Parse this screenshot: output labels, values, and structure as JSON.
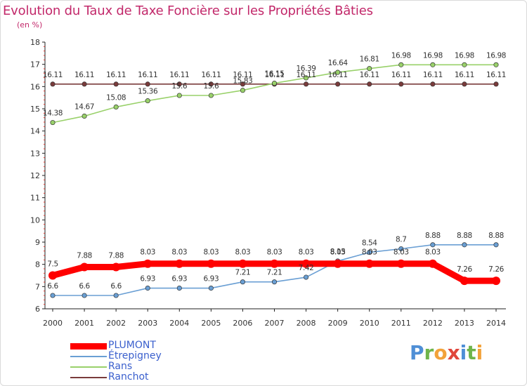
{
  "title": "Evolution du Taux de Taxe Foncière sur les Propriétés Bâties",
  "unit": "(en %)",
  "chart_data": {
    "type": "line",
    "title": "Evolution du Taux de Taxe Foncière sur les Propriétés Bâties",
    "ylabel": "(en %)",
    "xlabel": "",
    "ylim": [
      6,
      18
    ],
    "yticks": [
      6,
      7,
      8,
      9,
      10,
      11,
      12,
      13,
      14,
      15,
      16,
      17,
      18
    ],
    "categories": [
      "2000",
      "2001",
      "2002",
      "2003",
      "2004",
      "2005",
      "2006",
      "2007",
      "2008",
      "2009",
      "2010",
      "2011",
      "2012",
      "2013",
      "2014"
    ],
    "series": [
      {
        "name": "PLUMONT",
        "color": "#ff0000",
        "values": [
          7.5,
          7.88,
          7.88,
          8.03,
          8.03,
          8.03,
          8.03,
          8.03,
          8.03,
          8.03,
          8.03,
          8.03,
          8.03,
          7.26,
          7.26
        ],
        "labels": [
          "7.5",
          "7.88",
          "7.88",
          "8.03",
          "8.03",
          "8.03",
          "8.03",
          "8.03",
          "8.03",
          "8.03",
          "8.03",
          "8.03",
          "8.03",
          "7.26",
          "7.26"
        ]
      },
      {
        "name": "Étrepigney",
        "color": "#6a9fd4",
        "values": [
          6.6,
          6.6,
          6.6,
          6.93,
          6.93,
          6.93,
          7.21,
          7.21,
          7.42,
          8.15,
          8.54,
          8.7,
          8.88,
          8.88,
          8.88
        ],
        "labels": [
          "6.6",
          "6.6",
          "6.6",
          "6.93",
          "6.93",
          "6.93",
          "7.21",
          "7.21",
          "7.42",
          "8.15",
          "8.54",
          "8.7",
          "8.88",
          "8.88",
          "8.88"
        ]
      },
      {
        "name": "Rans",
        "color": "#99d16a",
        "values": [
          14.38,
          14.67,
          15.08,
          15.36,
          15.6,
          15.6,
          15.83,
          16.15,
          16.39,
          16.64,
          16.81,
          16.98,
          16.98,
          16.98,
          16.98
        ],
        "labels": [
          "14.38",
          "14.67",
          "15.08",
          "15.36",
          "15.6",
          "15.6",
          "15.83",
          "16.15",
          "16.39",
          "16.64",
          "16.81",
          "16.98",
          "16.98",
          "16.98",
          "16.98"
        ]
      },
      {
        "name": "Ranchot",
        "color": "#7a3b3b",
        "values": [
          16.11,
          16.11,
          16.11,
          16.11,
          16.11,
          16.11,
          16.11,
          16.11,
          16.11,
          16.11,
          16.11,
          16.11,
          16.11,
          16.11,
          16.11
        ],
        "labels": [
          "16.11",
          "16.11",
          "16.11",
          "16.11",
          "16.11",
          "16.11",
          "16.11",
          "16.11",
          "16.11",
          "16.11",
          "16.11",
          "16.11",
          "16.11",
          "16.11",
          "16.11"
        ]
      }
    ],
    "legend_position": "bottom-left",
    "grid": false
  },
  "legend": {
    "items": [
      {
        "name": "PLUMONT",
        "color": "#ff0000"
      },
      {
        "name": "Étrepigney",
        "color": "#6a9fd4"
      },
      {
        "name": "Rans",
        "color": "#99d16a"
      },
      {
        "name": "Ranchot",
        "color": "#7a3b3b"
      }
    ]
  },
  "brand": {
    "text": "Proxiti",
    "letters": [
      {
        "ch": "P",
        "color": "#4f8fd6"
      },
      {
        "ch": "r",
        "color": "#6fb44a"
      },
      {
        "ch": "o",
        "color": "#f2a23a"
      },
      {
        "ch": "x",
        "color": "#e0463b"
      },
      {
        "ch": "i",
        "color": "#4f8fd6"
      },
      {
        "ch": "t",
        "color": "#6fb44a"
      },
      {
        "ch": "i",
        "color": "#f2a23a"
      }
    ]
  }
}
